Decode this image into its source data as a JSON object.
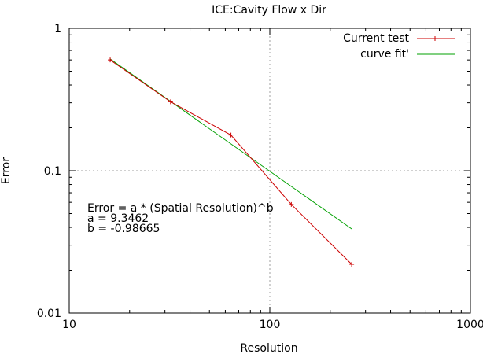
{
  "chart_data": {
    "type": "line",
    "title": "ICE:Cavity Flow x Dir",
    "xlabel": "Resolution",
    "ylabel": "Error",
    "xscale": "log",
    "yscale": "log",
    "xlim": [
      10,
      1000
    ],
    "ylim": [
      0.01,
      1
    ],
    "grid": "major (x=100, y=0.1)",
    "legend_position": "top-right",
    "x_ticks": [
      {
        "value": 10,
        "label": "10"
      },
      {
        "value": 100,
        "label": "100"
      },
      {
        "value": 1000,
        "label": "1000"
      }
    ],
    "y_ticks": [
      {
        "value": 0.01,
        "label": "0.01"
      },
      {
        "value": 0.1,
        "label": "0.1"
      },
      {
        "value": 1,
        "label": "1"
      }
    ],
    "series": [
      {
        "name": "Current test",
        "color": "#cc0000",
        "marker": "+",
        "x": [
          16,
          32,
          64,
          128,
          256
        ],
        "y": [
          0.6,
          0.305,
          0.178,
          0.058,
          0.022
        ]
      },
      {
        "name": "curve fit'",
        "color": "#00a000",
        "marker": "none",
        "x": [
          16,
          256
        ],
        "y": [
          0.61,
          0.039
        ]
      }
    ],
    "annotation": {
      "lines": [
        "Error = a * (Spatial Resolution)^b",
        "a = 9.3462",
        "b = -0.98665"
      ]
    }
  }
}
